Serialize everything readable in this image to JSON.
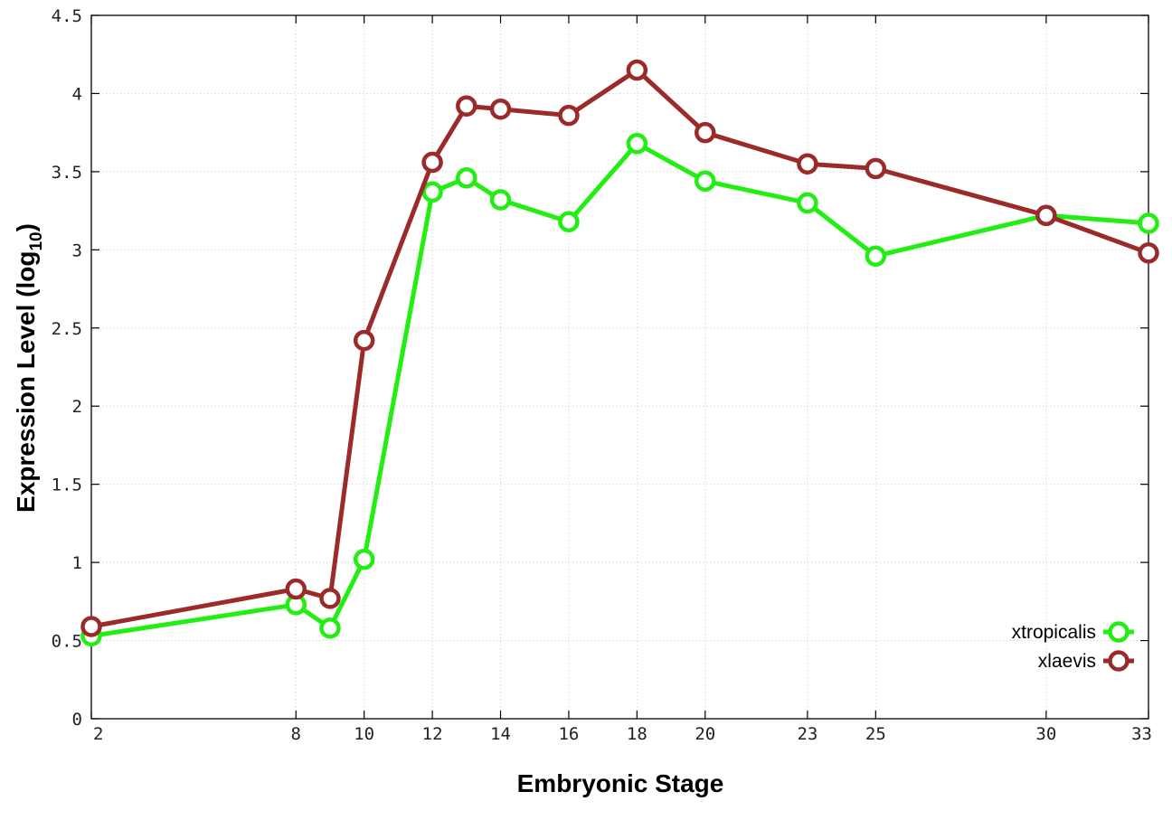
{
  "chart_data": {
    "type": "line",
    "xlabel": "Embryonic Stage",
    "ylabel_main": "Expression Level (log",
    "ylabel_sub": "10",
    "ylabel_close": ")",
    "xlim": [
      2,
      33
    ],
    "ylim": [
      0,
      4.5
    ],
    "x_ticks": [
      2,
      8,
      10,
      12,
      14,
      16,
      18,
      20,
      23,
      25,
      30,
      33
    ],
    "x_tick_labels": [
      "2",
      "8",
      "10",
      "12",
      "14",
      "16",
      "18",
      "20",
      "23",
      "25",
      "30",
      "33"
    ],
    "y_ticks": [
      0,
      0.5,
      1,
      1.5,
      2,
      2.5,
      3,
      3.5,
      4,
      4.5
    ],
    "y_tick_labels": [
      "0",
      "0.5",
      "1",
      "1.5",
      "2",
      "2.5",
      "3",
      "3.5",
      "4",
      "4.5"
    ],
    "x_values": [
      2,
      8,
      9,
      10,
      12,
      13,
      14,
      16,
      18,
      20,
      23,
      25,
      30,
      33
    ],
    "grid": true,
    "legend_position": "bottom-right",
    "series": [
      {
        "name": "xtropicalis",
        "color": "#22ee11",
        "values": [
          0.53,
          0.73,
          0.58,
          1.02,
          3.37,
          3.46,
          3.32,
          3.18,
          3.68,
          3.44,
          3.3,
          2.96,
          3.22,
          3.17
        ]
      },
      {
        "name": "xlaevis",
        "color": "#9b2a2a",
        "values": [
          0.59,
          0.83,
          0.77,
          2.42,
          3.56,
          3.92,
          3.9,
          3.86,
          4.15,
          3.75,
          3.55,
          3.52,
          3.22,
          2.98
        ]
      }
    ]
  }
}
